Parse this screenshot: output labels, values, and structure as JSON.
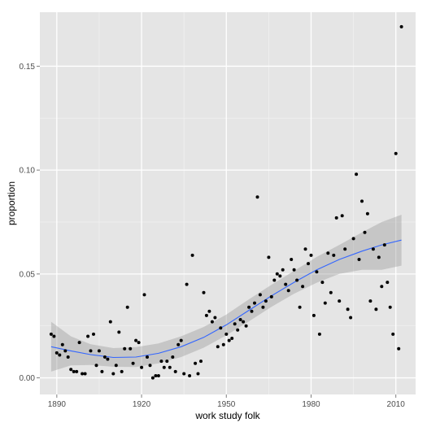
{
  "chart_data": {
    "type": "scatter",
    "title": "",
    "xlabel": "work study folk",
    "ylabel": "proportion",
    "xlim": [
      1884,
      2017
    ],
    "ylim": [
      -0.008,
      0.176
    ],
    "x_ticks": [
      1890,
      1920,
      1950,
      1980,
      2010
    ],
    "x_tick_labels": [
      "1890",
      "1920",
      "1950",
      "1980",
      "2010"
    ],
    "y_ticks": [
      0.0,
      0.05,
      0.1,
      0.15
    ],
    "y_tick_labels": [
      "0.00",
      "0.05",
      "0.10",
      "0.15"
    ],
    "grid": true,
    "legend": "none",
    "colors": {
      "panel_background": "#e5e5e5",
      "grid_major": "#ffffff",
      "grid_minor": "#f2f2f2",
      "points": "#000000",
      "smooth_line": "#3366ff",
      "confidence_band": "#999999"
    },
    "points": [
      {
        "x": 1888,
        "y": 0.021
      },
      {
        "x": 1889,
        "y": 0.02
      },
      {
        "x": 1890,
        "y": 0.012
      },
      {
        "x": 1891,
        "y": 0.011
      },
      {
        "x": 1892,
        "y": 0.016
      },
      {
        "x": 1893,
        "y": 0.013
      },
      {
        "x": 1894,
        "y": 0.01
      },
      {
        "x": 1895,
        "y": 0.004
      },
      {
        "x": 1896,
        "y": 0.003
      },
      {
        "x": 1897,
        "y": 0.003
      },
      {
        "x": 1898,
        "y": 0.017
      },
      {
        "x": 1899,
        "y": 0.002
      },
      {
        "x": 1900,
        "y": 0.002
      },
      {
        "x": 1901,
        "y": 0.02
      },
      {
        "x": 1902,
        "y": 0.013
      },
      {
        "x": 1903,
        "y": 0.021
      },
      {
        "x": 1904,
        "y": 0.006
      },
      {
        "x": 1905,
        "y": 0.013
      },
      {
        "x": 1906,
        "y": 0.003
      },
      {
        "x": 1907,
        "y": 0.01
      },
      {
        "x": 1908,
        "y": 0.009
      },
      {
        "x": 1909,
        "y": 0.027
      },
      {
        "x": 1910,
        "y": 0.002
      },
      {
        "x": 1911,
        "y": 0.006
      },
      {
        "x": 1912,
        "y": 0.022
      },
      {
        "x": 1913,
        "y": 0.003
      },
      {
        "x": 1914,
        "y": 0.014
      },
      {
        "x": 1915,
        "y": 0.034
      },
      {
        "x": 1916,
        "y": 0.014
      },
      {
        "x": 1917,
        "y": 0.007
      },
      {
        "x": 1918,
        "y": 0.018
      },
      {
        "x": 1919,
        "y": 0.017
      },
      {
        "x": 1920,
        "y": 0.005
      },
      {
        "x": 1921,
        "y": 0.04
      },
      {
        "x": 1922,
        "y": 0.01
      },
      {
        "x": 1923,
        "y": 0.006
      },
      {
        "x": 1924,
        "y": 0.0
      },
      {
        "x": 1925,
        "y": 0.001
      },
      {
        "x": 1926,
        "y": 0.001
      },
      {
        "x": 1927,
        "y": 0.008
      },
      {
        "x": 1928,
        "y": 0.005
      },
      {
        "x": 1929,
        "y": 0.008
      },
      {
        "x": 1930,
        "y": 0.005
      },
      {
        "x": 1931,
        "y": 0.01
      },
      {
        "x": 1932,
        "y": 0.003
      },
      {
        "x": 1933,
        "y": 0.016
      },
      {
        "x": 1934,
        "y": 0.018
      },
      {
        "x": 1935,
        "y": 0.002
      },
      {
        "x": 1936,
        "y": 0.045
      },
      {
        "x": 1937,
        "y": 0.001
      },
      {
        "x": 1938,
        "y": 0.059
      },
      {
        "x": 1939,
        "y": 0.007
      },
      {
        "x": 1940,
        "y": 0.002
      },
      {
        "x": 1941,
        "y": 0.008
      },
      {
        "x": 1942,
        "y": 0.041
      },
      {
        "x": 1943,
        "y": 0.03
      },
      {
        "x": 1944,
        "y": 0.032
      },
      {
        "x": 1945,
        "y": 0.027
      },
      {
        "x": 1946,
        "y": 0.029
      },
      {
        "x": 1947,
        "y": 0.015
      },
      {
        "x": 1948,
        "y": 0.024
      },
      {
        "x": 1949,
        "y": 0.016
      },
      {
        "x": 1950,
        "y": 0.021
      },
      {
        "x": 1951,
        "y": 0.018
      },
      {
        "x": 1952,
        "y": 0.019
      },
      {
        "x": 1953,
        "y": 0.026
      },
      {
        "x": 1954,
        "y": 0.023
      },
      {
        "x": 1955,
        "y": 0.028
      },
      {
        "x": 1956,
        "y": 0.027
      },
      {
        "x": 1957,
        "y": 0.025
      },
      {
        "x": 1958,
        "y": 0.034
      },
      {
        "x": 1959,
        "y": 0.032
      },
      {
        "x": 1960,
        "y": 0.036
      },
      {
        "x": 1961,
        "y": 0.087
      },
      {
        "x": 1962,
        "y": 0.04
      },
      {
        "x": 1963,
        "y": 0.034
      },
      {
        "x": 1964,
        "y": 0.037
      },
      {
        "x": 1965,
        "y": 0.058
      },
      {
        "x": 1966,
        "y": 0.039
      },
      {
        "x": 1967,
        "y": 0.047
      },
      {
        "x": 1968,
        "y": 0.05
      },
      {
        "x": 1969,
        "y": 0.049
      },
      {
        "x": 1970,
        "y": 0.052
      },
      {
        "x": 1971,
        "y": 0.045
      },
      {
        "x": 1972,
        "y": 0.042
      },
      {
        "x": 1973,
        "y": 0.057
      },
      {
        "x": 1974,
        "y": 0.052
      },
      {
        "x": 1975,
        "y": 0.047
      },
      {
        "x": 1976,
        "y": 0.034
      },
      {
        "x": 1977,
        "y": 0.044
      },
      {
        "x": 1978,
        "y": 0.062
      },
      {
        "x": 1979,
        "y": 0.055
      },
      {
        "x": 1980,
        "y": 0.059
      },
      {
        "x": 1981,
        "y": 0.03
      },
      {
        "x": 1982,
        "y": 0.051
      },
      {
        "x": 1983,
        "y": 0.021
      },
      {
        "x": 1984,
        "y": 0.046
      },
      {
        "x": 1985,
        "y": 0.036
      },
      {
        "x": 1986,
        "y": 0.06
      },
      {
        "x": 1987,
        "y": 0.041
      },
      {
        "x": 1988,
        "y": 0.059
      },
      {
        "x": 1989,
        "y": 0.077
      },
      {
        "x": 1990,
        "y": 0.037
      },
      {
        "x": 1991,
        "y": 0.078
      },
      {
        "x": 1992,
        "y": 0.062
      },
      {
        "x": 1993,
        "y": 0.033
      },
      {
        "x": 1994,
        "y": 0.029
      },
      {
        "x": 1995,
        "y": 0.067
      },
      {
        "x": 1996,
        "y": 0.098
      },
      {
        "x": 1997,
        "y": 0.057
      },
      {
        "x": 1998,
        "y": 0.085
      },
      {
        "x": 1999,
        "y": 0.07
      },
      {
        "x": 2000,
        "y": 0.079
      },
      {
        "x": 2001,
        "y": 0.037
      },
      {
        "x": 2002,
        "y": 0.062
      },
      {
        "x": 2003,
        "y": 0.033
      },
      {
        "x": 2004,
        "y": 0.058
      },
      {
        "x": 2005,
        "y": 0.044
      },
      {
        "x": 2006,
        "y": 0.064
      },
      {
        "x": 2007,
        "y": 0.046
      },
      {
        "x": 2008,
        "y": 0.034
      },
      {
        "x": 2009,
        "y": 0.021
      },
      {
        "x": 2010,
        "y": 0.108
      },
      {
        "x": 2011,
        "y": 0.014
      },
      {
        "x": 2012,
        "y": 0.169
      }
    ],
    "smooth": [
      {
        "x": 1888,
        "y": 0.015,
        "lo": 0.003,
        "hi": 0.027
      },
      {
        "x": 1895,
        "y": 0.013,
        "lo": 0.006,
        "hi": 0.02
      },
      {
        "x": 1902,
        "y": 0.0112,
        "lo": 0.0062,
        "hi": 0.0162
      },
      {
        "x": 1910,
        "y": 0.0098,
        "lo": 0.0053,
        "hi": 0.0143
      },
      {
        "x": 1918,
        "y": 0.01,
        "lo": 0.0052,
        "hi": 0.0148
      },
      {
        "x": 1926,
        "y": 0.0118,
        "lo": 0.007,
        "hi": 0.0166
      },
      {
        "x": 1934,
        "y": 0.015,
        "lo": 0.01,
        "hi": 0.02
      },
      {
        "x": 1942,
        "y": 0.0195,
        "lo": 0.0145,
        "hi": 0.0245
      },
      {
        "x": 1950,
        "y": 0.0255,
        "lo": 0.0205,
        "hi": 0.0305
      },
      {
        "x": 1958,
        "y": 0.0325,
        "lo": 0.0272,
        "hi": 0.0378
      },
      {
        "x": 1966,
        "y": 0.0395,
        "lo": 0.0342,
        "hi": 0.0448
      },
      {
        "x": 1974,
        "y": 0.046,
        "lo": 0.0405,
        "hi": 0.0515
      },
      {
        "x": 1982,
        "y": 0.052,
        "lo": 0.0458,
        "hi": 0.0582
      },
      {
        "x": 1990,
        "y": 0.057,
        "lo": 0.05,
        "hi": 0.064
      },
      {
        "x": 1998,
        "y": 0.061,
        "lo": 0.052,
        "hi": 0.07
      },
      {
        "x": 2005,
        "y": 0.064,
        "lo": 0.052,
        "hi": 0.075
      },
      {
        "x": 2012,
        "y": 0.0663,
        "lo": 0.054,
        "hi": 0.0785
      }
    ]
  }
}
